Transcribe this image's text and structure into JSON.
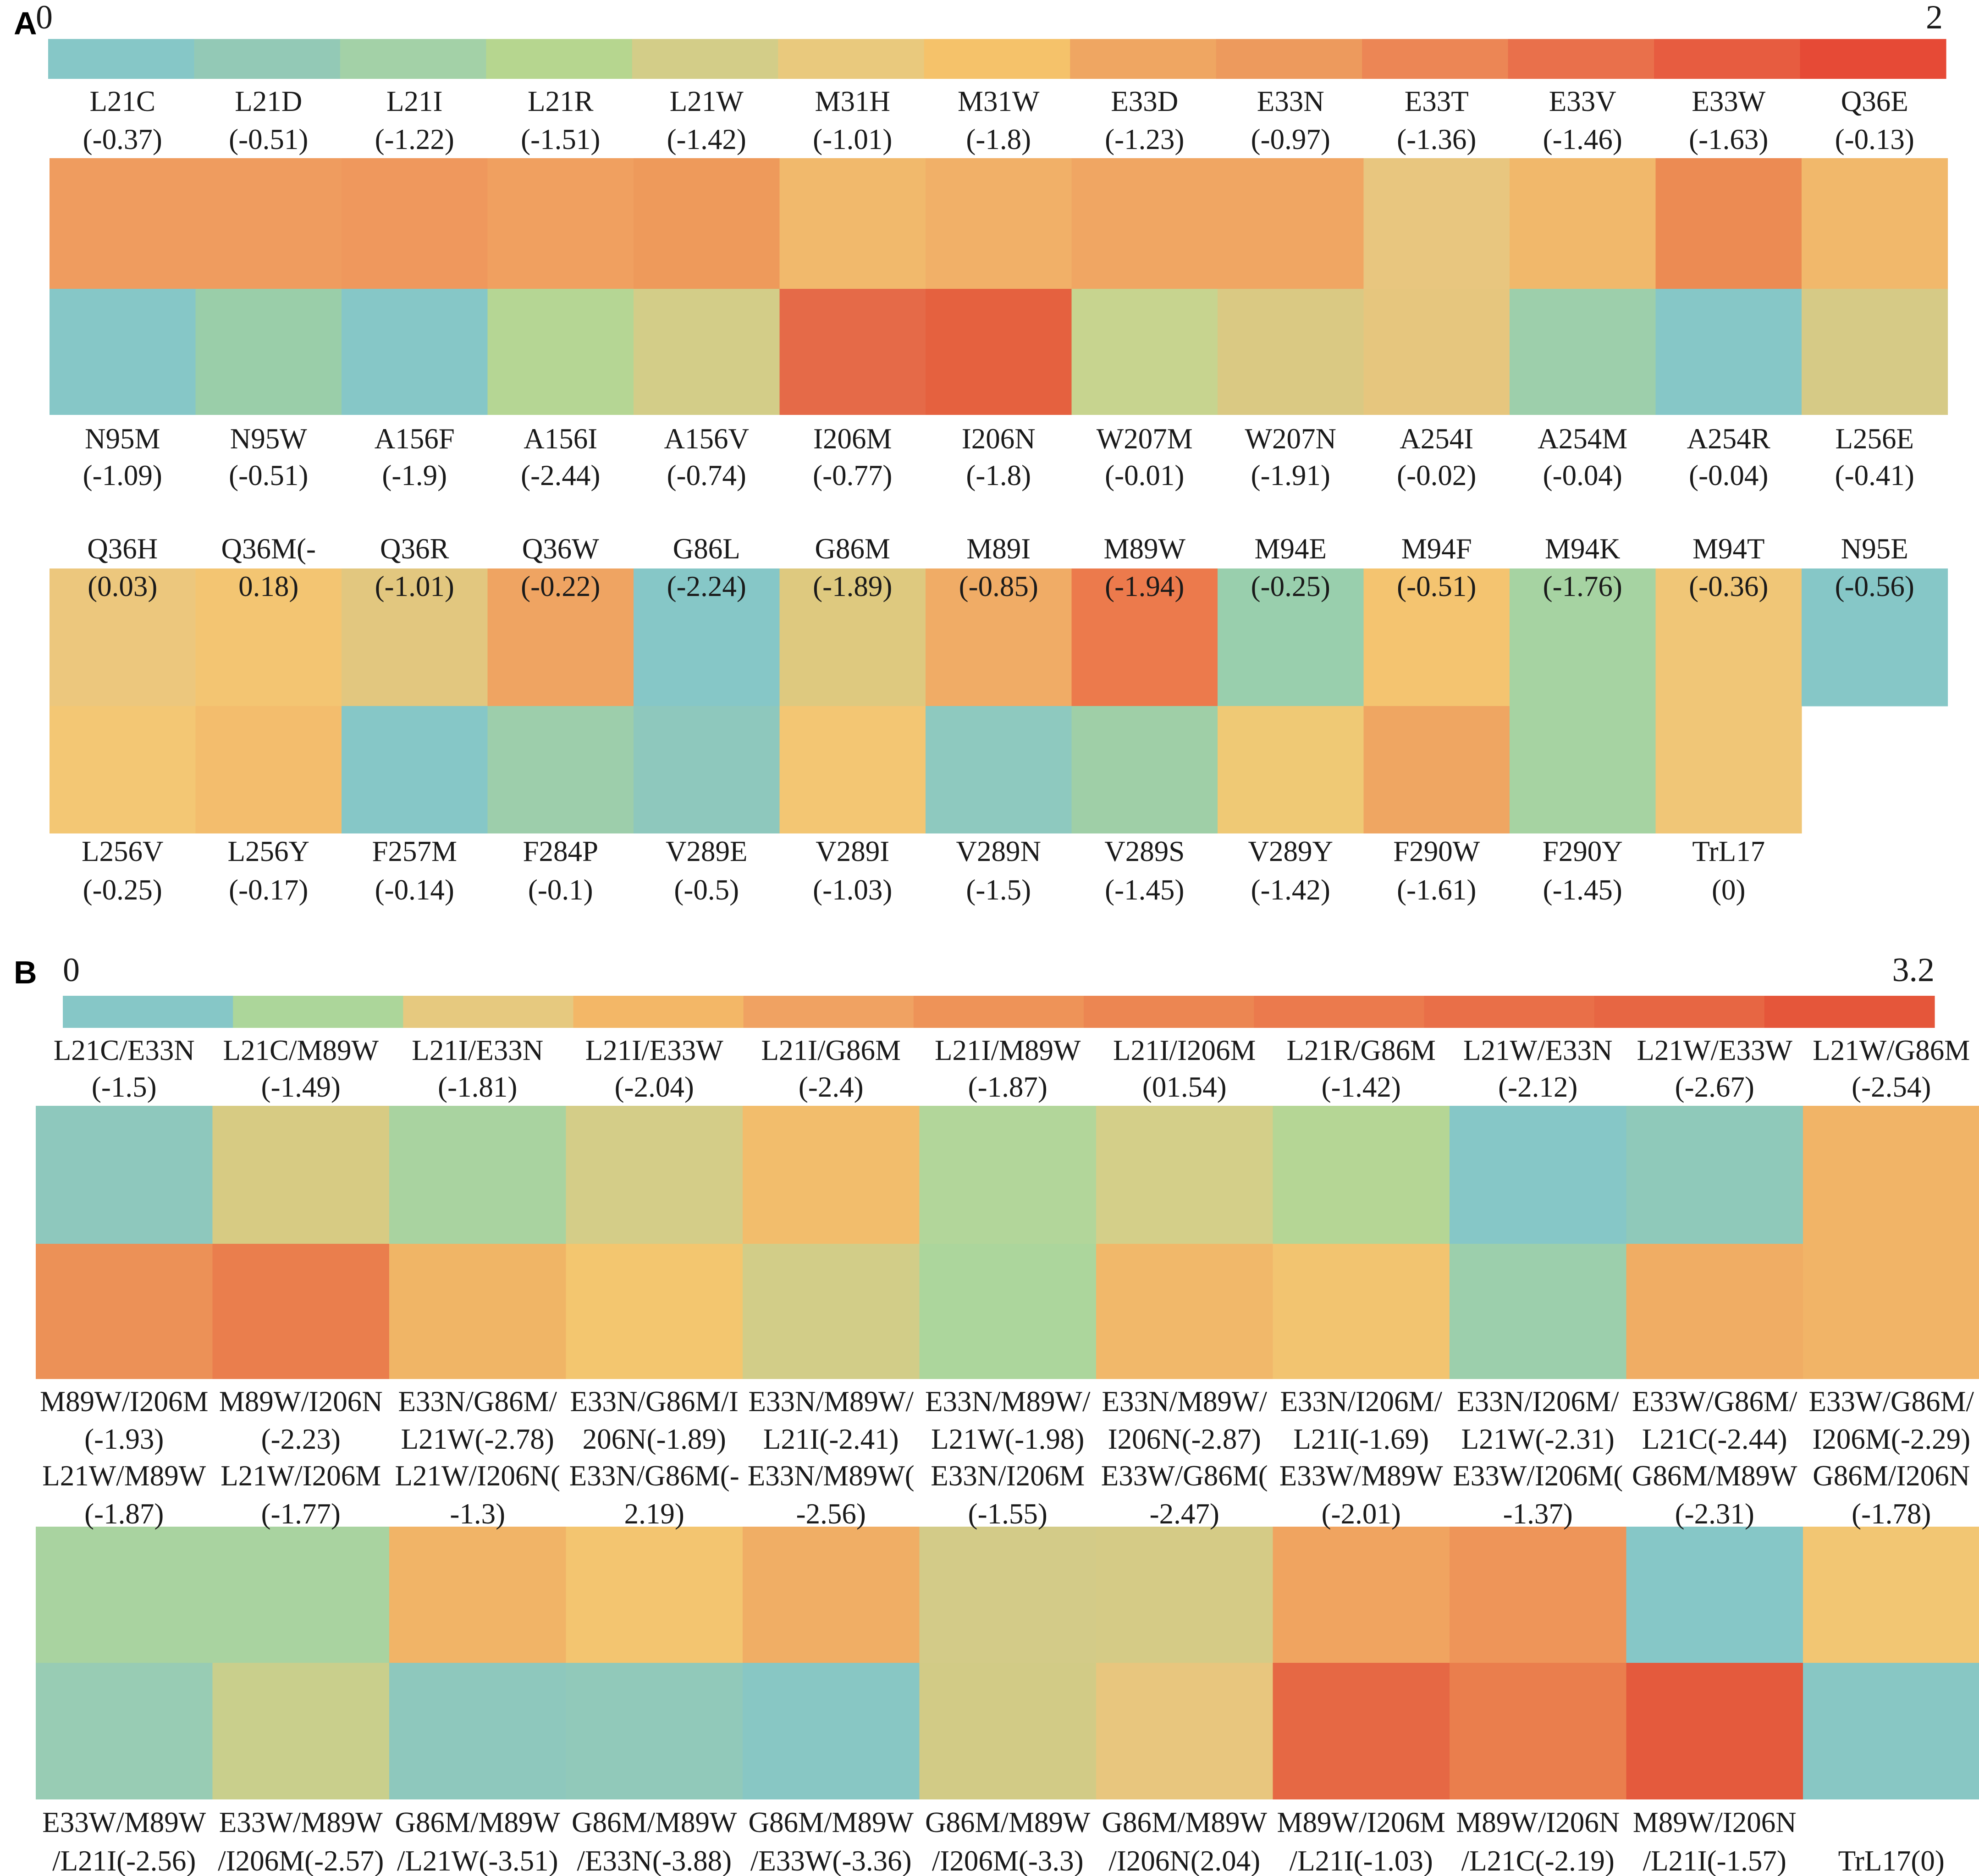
{
  "chart_data": [
    {
      "type": "heatmap",
      "panel": "A",
      "colorbar": {
        "min_label": "0",
        "max_label": "2",
        "colors": [
          "#86c7c7",
          "#93c9b6",
          "#a3d1a7",
          "#b6d68f",
          "#d3cd88",
          "#e9c97d",
          "#f5c26a",
          "#efa662",
          "#ed9a5d",
          "#ec8655",
          "#e9704b",
          "#e75c40",
          "#e64a36"
        ]
      },
      "groups": [
        {
          "top_labels": [
            [
              "L21C",
              "(-0.37)"
            ],
            [
              "L21D",
              "(-0.51)"
            ],
            [
              "L21I",
              "(-1.22)"
            ],
            [
              "L21R",
              "(-1.51)"
            ],
            [
              "L21W",
              "(-1.42)"
            ],
            [
              "M31H",
              "(-1.01)"
            ],
            [
              "M31W",
              "(-1.8)"
            ],
            [
              "E33D",
              "(-1.23)"
            ],
            [
              "E33N",
              "(-0.97)"
            ],
            [
              "E33T",
              "(-1.36)"
            ],
            [
              "E33V",
              "(-1.46)"
            ],
            [
              "E33W",
              "(-1.63)"
            ],
            [
              "Q36E",
              "(-0.13)"
            ]
          ],
          "row1": [
            "#ef9c5f",
            "#ef9c5f",
            "#ef985d",
            "#f0a060",
            "#ee9a5b",
            "#f1b96c",
            "#f1b068",
            "#f0a663",
            "#f0a663",
            "#e8c67f",
            "#f1b86b",
            "#ec8b53",
            "#f1b86b"
          ],
          "row2": [
            "#86c7c7",
            "#9acea9",
            "#86c7c7",
            "#b5d694",
            "#d3cd88",
            "#e56a48",
            "#e5613f",
            "#c7d48f",
            "#dac983",
            "#e6c67e",
            "#9dcfab",
            "#86c7c7",
            "#d6ca86"
          ],
          "bottom_labels": [
            [
              "N95M",
              "(-1.09)"
            ],
            [
              "N95W",
              "(-0.51)"
            ],
            [
              "A156F",
              "(-1.9)"
            ],
            [
              "A156I",
              "(-2.44)"
            ],
            [
              "A156V",
              "(-0.74)"
            ],
            [
              "I206M",
              "(-0.77)"
            ],
            [
              "I206N",
              "(-1.8)"
            ],
            [
              "W207M",
              "(-0.01)"
            ],
            [
              "W207N",
              "(-1.91)"
            ],
            [
              "A254I",
              "(-0.02)"
            ],
            [
              "A254M",
              "(-0.04)"
            ],
            [
              "A254R",
              "(-0.04)"
            ],
            [
              "L256E",
              "(-0.41)"
            ]
          ]
        },
        {
          "top_labels": [
            [
              "Q36H",
              "(0.03)"
            ],
            [
              "Q36M(-",
              "0.18)"
            ],
            [
              "Q36R",
              "(-1.01)"
            ],
            [
              "Q36W",
              "(-0.22)"
            ],
            [
              "G86L",
              "(-2.24)"
            ],
            [
              "G86M",
              "(-1.89)"
            ],
            [
              "M89I",
              "(-0.85)"
            ],
            [
              "M89W",
              "(-1.94)"
            ],
            [
              "M94E",
              "(-0.25)"
            ],
            [
              "M94F",
              "(-0.51)"
            ],
            [
              "M94K",
              "(-1.76)"
            ],
            [
              "M94T",
              "(-0.36)"
            ],
            [
              "N95E",
              "(-0.56)"
            ]
          ],
          "row1": [
            "#ecc77d",
            "#f3c572",
            "#e2c77f",
            "#efa462",
            "#86c7c7",
            "#dec97f",
            "#f0ac66",
            "#ec7a4c",
            "#99cfad",
            "#f4c470",
            "#a6d3a2",
            "#f0c677",
            "#86c7c7"
          ],
          "row2": [
            "#f3c774",
            "#f3bd6d",
            "#86c7c7",
            "#9dceab",
            "#8ec8bd",
            "#f3c673",
            "#8ec9bf",
            "#9fcfa7",
            "#efc975",
            "#efa662",
            "#a6d3a2",
            "#f0c677",
            null
          ],
          "bottom_labels": [
            [
              "L256V",
              "(-0.25)"
            ],
            [
              "L256Y",
              "(-0.17)"
            ],
            [
              "F257M",
              "(-0.14)"
            ],
            [
              "F284P",
              "(-0.1)"
            ],
            [
              "V289E",
              "(-0.5)"
            ],
            [
              "V289I",
              "(-1.03)"
            ],
            [
              "V289N",
              "(-1.5)"
            ],
            [
              "V289S",
              "(-1.45)"
            ],
            [
              "V289Y",
              "(-1.42)"
            ],
            [
              "F290W",
              "(-1.61)"
            ],
            [
              "F290Y",
              "(-1.45)"
            ],
            [
              "TrL17",
              "(0)"
            ]
          ]
        }
      ]
    },
    {
      "type": "heatmap",
      "panel": "B",
      "colorbar": {
        "min_label": "0",
        "max_label": "3.2",
        "colors": [
          "#86c7c7",
          "#acd69a",
          "#e6c97f",
          "#f3b767",
          "#f0a262",
          "#ee9358",
          "#ec8652",
          "#eb7a4d",
          "#e96f48",
          "#e76643",
          "#e5563a"
        ]
      },
      "groups": [
        {
          "top_labels": [
            [
              "L21C/E33N",
              "(-1.5)"
            ],
            [
              "L21C/M89W",
              "(-1.49)"
            ],
            [
              "L21I/E33N",
              "(-1.81)"
            ],
            [
              "L21I/E33W",
              "(-2.04)"
            ],
            [
              "L21I/G86M",
              "(-2.4)"
            ],
            [
              "L21I/M89W",
              "(-1.87)"
            ],
            [
              "L21I/I206M",
              "(01.54)"
            ],
            [
              "L21R/G86M",
              "(-1.42)"
            ],
            [
              "L21W/E33N",
              "(-2.12)"
            ],
            [
              "L21W/E33W",
              "(-2.67)"
            ],
            [
              "L21W/G86M",
              "(-2.54)"
            ]
          ],
          "row1": [
            "#8ec8bd",
            "#d7cb83",
            "#a9d3a0",
            "#d4cd88",
            "#f2bd6c",
            "#b2d69a",
            "#d4cf89",
            "#b5d695",
            "#86c7c7",
            "#8fc9ba",
            "#f1b467"
          ],
          "row2": [
            "#ec9157",
            "#ea7e4d",
            "#f0b566",
            "#f3c66f",
            "#d2cd88",
            "#acd69c",
            "#f1b86a",
            "#f2c470",
            "#9ccfac",
            "#f0ad64",
            "#f1b467"
          ],
          "bottom_labels": [
            [
              "M89W/I206M",
              "(-1.93)"
            ],
            [
              "M89W/I206N",
              "(-2.23)"
            ],
            [
              "E33N/G86M/",
              "L21W(-2.78)"
            ],
            [
              "E33N/G86M/I",
              "206N(-1.89)"
            ],
            [
              "E33N/M89W/",
              "L21I(-2.41)"
            ],
            [
              "E33N/M89W/",
              "L21W(-1.98)"
            ],
            [
              "E33N/M89W/",
              "I206N(-2.87)"
            ],
            [
              "E33N/I206M/",
              "L21I(-1.69)"
            ],
            [
              "E33N/I206M/",
              "L21W(-2.31)"
            ],
            [
              "E33W/G86M/",
              "L21C(-2.44)"
            ],
            [
              "E33W/G86M/",
              "I206M(-2.29)"
            ]
          ]
        },
        {
          "top_labels": [
            [
              "L21W/M89W",
              "(-1.87)"
            ],
            [
              "L21W/I206M",
              "(-1.77)"
            ],
            [
              "L21W/I206N(",
              "-1.3)"
            ],
            [
              "E33N/G86M(-",
              "2.19)"
            ],
            [
              "E33N/M89W(",
              "-2.56)"
            ],
            [
              "E33N/I206M",
              "(-1.55)"
            ],
            [
              "E33W/G86M(",
              "-2.47)"
            ],
            [
              "E33W/M89W",
              "(-2.01)"
            ],
            [
              "E33W/I206M(",
              "-1.37)"
            ],
            [
              "G86M/M89W",
              "(-2.31)"
            ],
            [
              "G86M/I206N",
              "(-1.78)"
            ]
          ],
          "row1": [
            "#a9d3a0",
            "#a9d3a0",
            "#f1b467",
            "#f3c570",
            "#f0ae65",
            "#d3cb88",
            "#d5cb86",
            "#f0a460",
            "#ee9559",
            "#86c7c7",
            "#f2c673"
          ],
          "row2": [
            "#98ccb4",
            "#c9cf8c",
            "#8ec8bd",
            "#91c9ba",
            "#88c7c4",
            "#d2cb86",
            "#e8c67e",
            "#e66844",
            "#ea7e4d",
            "#e45a3d",
            "#88c7c4"
          ],
          "bottom_labels": [
            [
              "E33W/M89W",
              "/L21I(-2.56)"
            ],
            [
              "E33W/M89W",
              "/I206M(-2.57)"
            ],
            [
              "G86M/M89W",
              "/L21W(-3.51)"
            ],
            [
              "G86M/M89W",
              "/E33N(-3.88)"
            ],
            [
              "G86M/M89W",
              "/E33W(-3.36)"
            ],
            [
              "G86M/M89W",
              "/I206M(-3.3)"
            ],
            [
              "G86M/M89W",
              "/I206N(2.04)"
            ],
            [
              "M89W/I206M",
              "/L21I(-1.03)"
            ],
            [
              "M89W/I206N",
              "/L21C(-2.19)"
            ],
            [
              "M89W/I206N",
              "/L21I(-1.57)"
            ],
            [
              "",
              "TrL17(0)"
            ]
          ]
        }
      ]
    }
  ]
}
